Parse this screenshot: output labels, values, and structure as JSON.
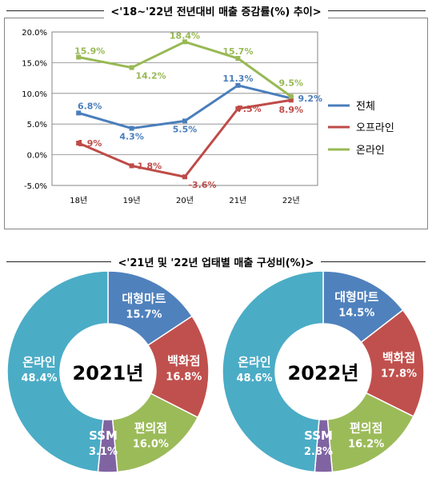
{
  "chart_data": [
    {
      "type": "line",
      "title": "<'18~'22년 전년대비 매출 증감률(%) 추이>",
      "categories": [
        "18년",
        "19년",
        "20년",
        "21년",
        "22년"
      ],
      "ylim": [
        -5,
        20
      ],
      "yticks": [
        "20.0%",
        "15.0%",
        "10.0%",
        "5.0%",
        "0.0%",
        "-5.0%"
      ],
      "ytick_values": [
        20,
        15,
        10,
        5,
        0,
        -5
      ],
      "legend_position": "right",
      "grid": true,
      "series": [
        {
          "name": "전체",
          "color": "#4a7ebb",
          "values": [
            6.8,
            4.3,
            5.5,
            11.3,
            9.2
          ],
          "labels": [
            "6.8%",
            "4.3%",
            "5.5%",
            "11.3%",
            "9.2%"
          ]
        },
        {
          "name": "오프라인",
          "color": "#be4b48",
          "values": [
            1.9,
            -1.8,
            -3.6,
            7.5,
            8.9
          ],
          "labels": [
            "1.9%",
            "-1.8%",
            "-3.6%",
            "7.5%",
            "8.9%"
          ]
        },
        {
          "name": "온라인",
          "color": "#98b954",
          "values": [
            15.9,
            14.2,
            18.4,
            15.7,
            9.5
          ],
          "labels": [
            "15.9%",
            "14.2%",
            "18.4%",
            "15.7%",
            "9.5%"
          ]
        }
      ]
    },
    {
      "type": "pie",
      "title": "<'21년 및 '22년 업태별 매출 구성비(%)>",
      "center_label": "2021년",
      "slices": [
        {
          "name": "대형마트",
          "value": 15.7,
          "label": "15.7%",
          "color": "#4f81bd"
        },
        {
          "name": "백화점",
          "value": 16.8,
          "label": "16.8%",
          "color": "#c0504d"
        },
        {
          "name": "편의점",
          "value": 16.0,
          "label": "16.0%",
          "color": "#9bbb59"
        },
        {
          "name": "SSM",
          "value": 3.1,
          "label": "3.1%",
          "color": "#8064a2"
        },
        {
          "name": "온라인",
          "value": 48.4,
          "label": "48.4%",
          "color": "#4bacc6"
        }
      ]
    },
    {
      "type": "pie",
      "center_label": "2022년",
      "slices": [
        {
          "name": "대형마트",
          "value": 14.5,
          "label": "14.5%",
          "color": "#4f81bd"
        },
        {
          "name": "백화점",
          "value": 17.8,
          "label": "17.8%",
          "color": "#c0504d"
        },
        {
          "name": "편의점",
          "value": 16.2,
          "label": "16.2%",
          "color": "#9bbb59"
        },
        {
          "name": "SSM",
          "value": 2.8,
          "label": "2.8%",
          "color": "#8064a2"
        },
        {
          "name": "온라인",
          "value": 48.6,
          "label": "48.6%",
          "color": "#4bacc6"
        }
      ]
    }
  ]
}
